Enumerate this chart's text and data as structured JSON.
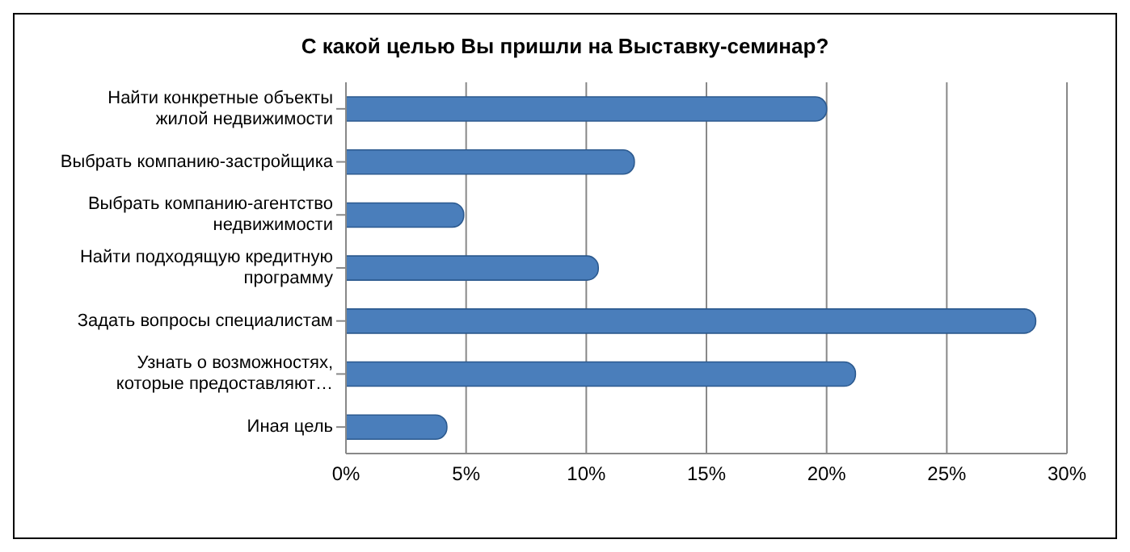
{
  "chart_data": {
    "type": "bar",
    "orientation": "horizontal",
    "title": "С какой целью Вы пришли на Выставку-семинар?",
    "categories": [
      "Найти конкретные объекты жилой недвижимости",
      "Выбрать компанию-застройщика",
      "Выбрать компанию-агентство недвижимости",
      "Найти подходящую кредитную программу",
      "Задать вопросы специалистам",
      "Узнать о возможностях, которые предоставляют…",
      "Иная цель"
    ],
    "values": [
      20,
      12,
      4.9,
      10.5,
      28.7,
      21.2,
      4.2
    ],
    "color": "#4a7ebb",
    "xlim": [
      0,
      30
    ],
    "xticks": [
      {
        "value": 0,
        "label": "0%"
      },
      {
        "value": 5,
        "label": "5%"
      },
      {
        "value": 10,
        "label": "10%"
      },
      {
        "value": 15,
        "label": "15%"
      },
      {
        "value": 20,
        "label": "20%"
      },
      {
        "value": 25,
        "label": "25%"
      },
      {
        "value": 30,
        "label": "30%"
      }
    ],
    "grid": "x",
    "legend": false
  }
}
